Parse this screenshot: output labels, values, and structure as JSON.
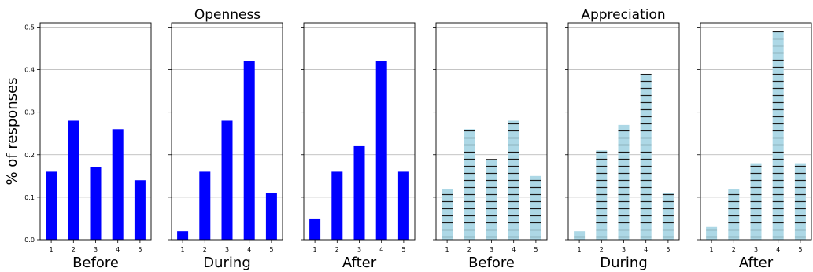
{
  "figure": {
    "ylabel": "% of responses",
    "group_titles": [
      "Openness",
      "Appreciation"
    ],
    "colors": {
      "openness": "#0000ff",
      "appreciation": "#add8e6",
      "hatch": "#1a1a1a",
      "grid": "#b0b0b0",
      "axis": "#000000"
    }
  },
  "chart_data": [
    {
      "type": "bar",
      "group": "Openness",
      "xlabel": "Before",
      "categories": [
        "1",
        "2",
        "3",
        "4",
        "5"
      ],
      "values": [
        0.16,
        0.28,
        0.17,
        0.26,
        0.14
      ],
      "ylim": [
        0,
        0.51
      ],
      "yticks": [
        "0.0",
        "0.1",
        "0.2",
        "0.3",
        "0.4",
        "0.5"
      ],
      "grid": "y",
      "style": "solid"
    },
    {
      "type": "bar",
      "group": "Openness",
      "xlabel": "During",
      "categories": [
        "1",
        "2",
        "3",
        "4",
        "5"
      ],
      "values": [
        0.02,
        0.16,
        0.28,
        0.42,
        0.11
      ],
      "ylim": [
        0,
        0.51
      ],
      "grid": "y",
      "style": "solid"
    },
    {
      "type": "bar",
      "group": "Openness",
      "xlabel": "After",
      "categories": [
        "1",
        "2",
        "3",
        "4",
        "5"
      ],
      "values": [
        0.05,
        0.16,
        0.22,
        0.42,
        0.16
      ],
      "ylim": [
        0,
        0.51
      ],
      "grid": "y",
      "style": "solid"
    },
    {
      "type": "bar",
      "group": "Appreciation",
      "xlabel": "Before",
      "categories": [
        "1",
        "2",
        "3",
        "4",
        "5"
      ],
      "values": [
        0.12,
        0.26,
        0.19,
        0.28,
        0.15
      ],
      "ylim": [
        0,
        0.51
      ],
      "grid": "y",
      "style": "hatched"
    },
    {
      "type": "bar",
      "group": "Appreciation",
      "xlabel": "During",
      "categories": [
        "1",
        "2",
        "3",
        "4",
        "5"
      ],
      "values": [
        0.02,
        0.21,
        0.27,
        0.39,
        0.11
      ],
      "ylim": [
        0,
        0.51
      ],
      "grid": "y",
      "style": "hatched"
    },
    {
      "type": "bar",
      "group": "Appreciation",
      "xlabel": "After",
      "categories": [
        "1",
        "2",
        "3",
        "4",
        "5"
      ],
      "values": [
        0.03,
        0.12,
        0.18,
        0.49,
        0.18
      ],
      "ylim": [
        0,
        0.51
      ],
      "grid": "y",
      "style": "hatched"
    }
  ]
}
